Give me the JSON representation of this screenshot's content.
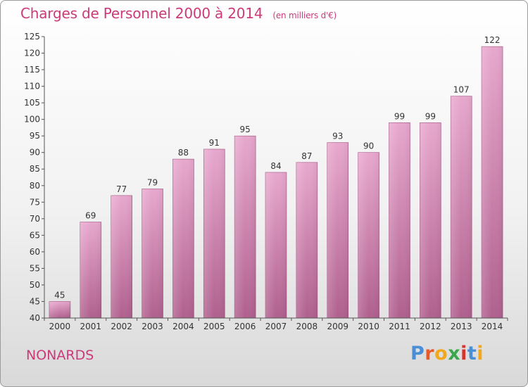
{
  "header": {
    "title": "Charges de Personnel 2000 à 2014",
    "subtitle": "(en milliers d'€)"
  },
  "footer": {
    "commune": "NONARDS",
    "brand": "Proxiti",
    "brand_colors": [
      "#4a8fd6",
      "#e85a2a",
      "#f2a81d",
      "#3aa84a",
      "#d6342f",
      "#4a8fd6",
      "#f2a81d"
    ]
  },
  "colors": {
    "bar_top": "#e8a8ce",
    "bar_bottom": "#b0608e",
    "bar_edge": "#a0507e",
    "axis": "#555555",
    "text": "#333333"
  },
  "chart_data": {
    "type": "bar",
    "title": "Charges de Personnel 2000 à 2014",
    "subtitle": "(en milliers d'€)",
    "xlabel": "",
    "ylabel": "",
    "categories": [
      "2000",
      "2001",
      "2002",
      "2003",
      "2004",
      "2005",
      "2006",
      "2007",
      "2008",
      "2009",
      "2010",
      "2011",
      "2012",
      "2013",
      "2014"
    ],
    "values": [
      45,
      69,
      77,
      79,
      88,
      91,
      95,
      84,
      87,
      93,
      90,
      99,
      99,
      107,
      122
    ],
    "data_labels": [
      "45",
      "69",
      "77",
      "79",
      "88",
      "91",
      "95",
      "84",
      "87",
      "93",
      "90",
      "99",
      "99",
      "107",
      "122"
    ],
    "ylim": [
      40,
      125
    ],
    "yticks": [
      "40",
      "45",
      "50",
      "55",
      "60",
      "65",
      "70",
      "75",
      "80",
      "85",
      "90",
      "95",
      "100",
      "105",
      "110",
      "115",
      "120",
      "125"
    ],
    "grid": false,
    "legend": "none"
  }
}
